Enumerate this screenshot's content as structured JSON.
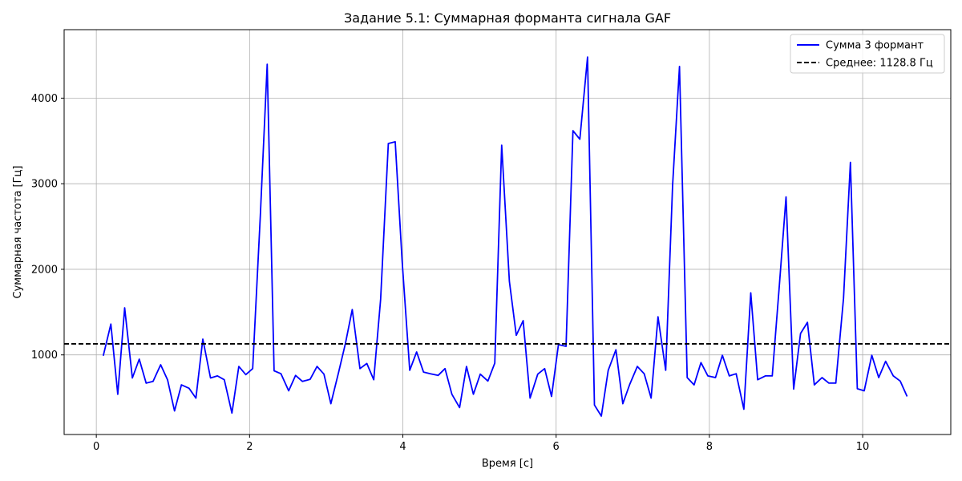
{
  "chart_data": {
    "type": "line",
    "title": "Задание 5.1: Суммарная форманта сигнала GAF",
    "xlabel": "Время [с]",
    "ylabel": "Суммарная частота [Гц]",
    "xlim": [
      -0.42,
      11.15
    ],
    "ylim": [
      70,
      4800
    ],
    "xticks": [
      0,
      2,
      4,
      6,
      8,
      10
    ],
    "yticks": [
      1000,
      2000,
      3000,
      4000
    ],
    "grid": true,
    "legend_position": "top-right",
    "series": [
      {
        "name": "Сумма 3 формант",
        "color": "#0000ff",
        "style": "solid",
        "points": [
          [
            0.09,
            990
          ],
          [
            0.19,
            1360
          ],
          [
            0.28,
            540
          ],
          [
            0.37,
            1550
          ],
          [
            0.47,
            730
          ],
          [
            0.56,
            950
          ],
          [
            0.65,
            670
          ],
          [
            0.74,
            690
          ],
          [
            0.84,
            885
          ],
          [
            0.93,
            710
          ],
          [
            1.02,
            345
          ],
          [
            1.11,
            650
          ],
          [
            1.21,
            610
          ],
          [
            1.3,
            495
          ],
          [
            1.39,
            1185
          ],
          [
            1.49,
            730
          ],
          [
            1.58,
            755
          ],
          [
            1.67,
            710
          ],
          [
            1.77,
            320
          ],
          [
            1.86,
            865
          ],
          [
            1.95,
            770
          ],
          [
            2.04,
            840
          ],
          [
            2.14,
            2620
          ],
          [
            2.23,
            4395
          ],
          [
            2.32,
            815
          ],
          [
            2.41,
            780
          ],
          [
            2.51,
            580
          ],
          [
            2.6,
            760
          ],
          [
            2.69,
            690
          ],
          [
            2.79,
            715
          ],
          [
            2.88,
            865
          ],
          [
            2.97,
            775
          ],
          [
            3.06,
            430
          ],
          [
            3.16,
            790
          ],
          [
            3.25,
            1130
          ],
          [
            3.34,
            1530
          ],
          [
            3.44,
            840
          ],
          [
            3.53,
            900
          ],
          [
            3.62,
            710
          ],
          [
            3.71,
            1650
          ],
          [
            3.81,
            3470
          ],
          [
            3.9,
            3490
          ],
          [
            3.99,
            2100
          ],
          [
            4.09,
            820
          ],
          [
            4.18,
            1035
          ],
          [
            4.27,
            800
          ],
          [
            4.36,
            780
          ],
          [
            4.46,
            760
          ],
          [
            4.55,
            840
          ],
          [
            4.64,
            540
          ],
          [
            4.74,
            385
          ],
          [
            4.83,
            865
          ],
          [
            4.92,
            540
          ],
          [
            5.01,
            775
          ],
          [
            5.11,
            695
          ],
          [
            5.2,
            905
          ],
          [
            5.29,
            3450
          ],
          [
            5.39,
            1860
          ],
          [
            5.48,
            1230
          ],
          [
            5.57,
            1400
          ],
          [
            5.66,
            495
          ],
          [
            5.76,
            775
          ],
          [
            5.85,
            840
          ],
          [
            5.94,
            515
          ],
          [
            6.03,
            1120
          ],
          [
            6.13,
            1100
          ],
          [
            6.22,
            3620
          ],
          [
            6.31,
            3520
          ],
          [
            6.41,
            4480
          ],
          [
            6.5,
            415
          ],
          [
            6.59,
            285
          ],
          [
            6.68,
            820
          ],
          [
            6.78,
            1060
          ],
          [
            6.87,
            430
          ],
          [
            6.96,
            655
          ],
          [
            7.06,
            865
          ],
          [
            7.15,
            780
          ],
          [
            7.24,
            495
          ],
          [
            7.33,
            1445
          ],
          [
            7.43,
            820
          ],
          [
            7.52,
            2980
          ],
          [
            7.61,
            4370
          ],
          [
            7.71,
            735
          ],
          [
            7.8,
            650
          ],
          [
            7.89,
            910
          ],
          [
            7.98,
            755
          ],
          [
            8.08,
            735
          ],
          [
            8.17,
            995
          ],
          [
            8.26,
            755
          ],
          [
            8.35,
            780
          ],
          [
            8.45,
            365
          ],
          [
            8.54,
            1725
          ],
          [
            8.63,
            710
          ],
          [
            8.73,
            755
          ],
          [
            8.82,
            755
          ],
          [
            8.91,
            1780
          ],
          [
            9.0,
            2845
          ],
          [
            9.1,
            600
          ],
          [
            9.19,
            1250
          ],
          [
            9.28,
            1380
          ],
          [
            9.37,
            650
          ],
          [
            9.47,
            735
          ],
          [
            9.56,
            670
          ],
          [
            9.65,
            670
          ],
          [
            9.75,
            1660
          ],
          [
            9.84,
            3250
          ],
          [
            9.93,
            605
          ],
          [
            10.02,
            580
          ],
          [
            10.12,
            995
          ],
          [
            10.21,
            735
          ],
          [
            10.3,
            925
          ],
          [
            10.4,
            755
          ],
          [
            10.49,
            695
          ],
          [
            10.58,
            515
          ]
        ]
      },
      {
        "name": "Среднее: 1128.8 Гц",
        "color": "#000000",
        "style": "dashed",
        "y": 1128.8
      }
    ]
  }
}
